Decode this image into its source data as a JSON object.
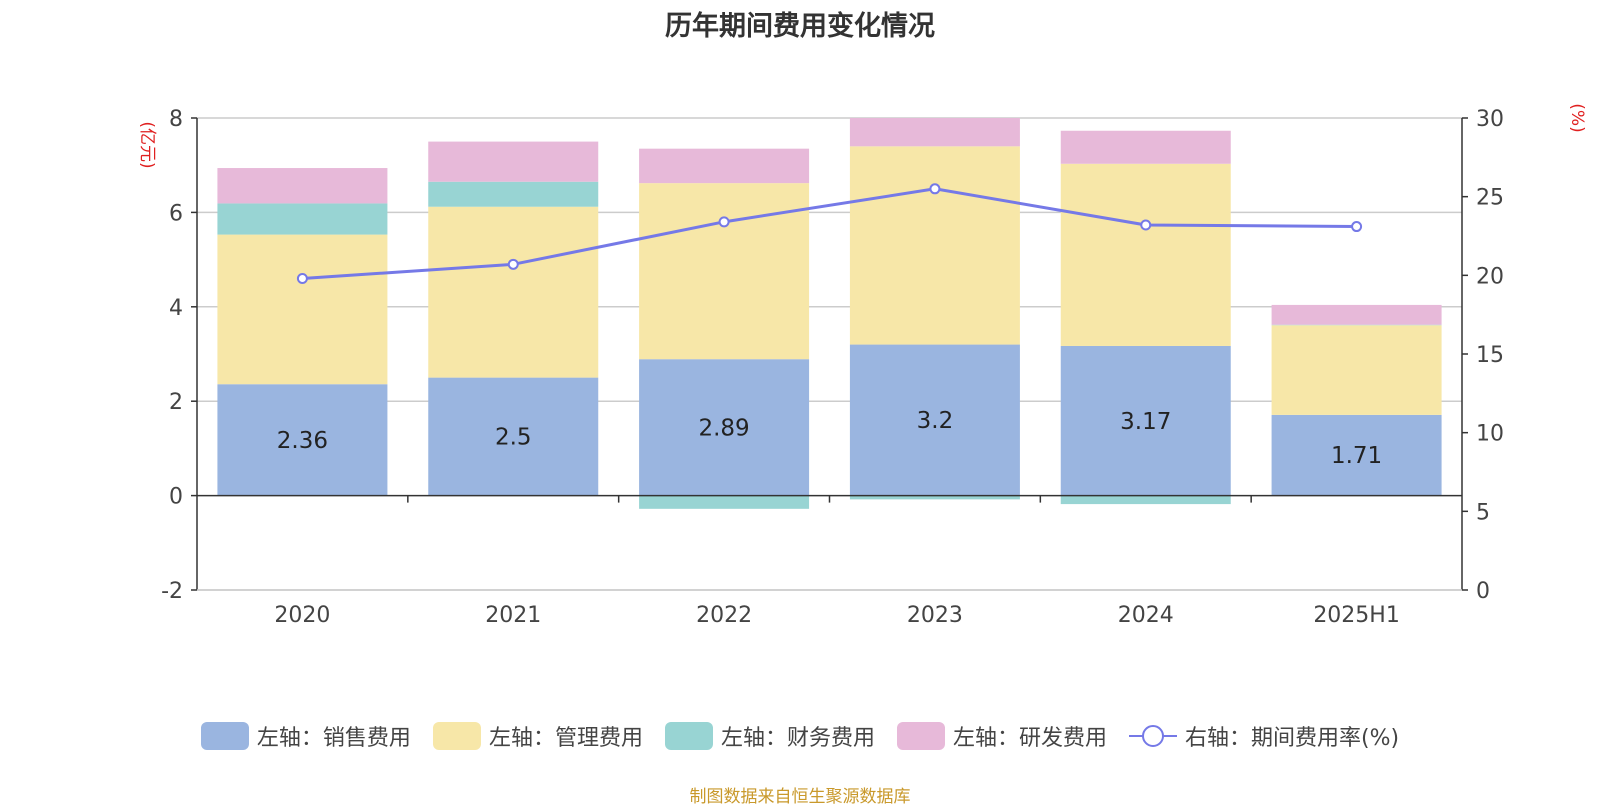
{
  "title": "历年期间费用变化情况",
  "source": "制图数据来自恒生聚源数据库",
  "chart_data": {
    "type": "bar",
    "categories": [
      "2020",
      "2021",
      "2022",
      "2023",
      "2024",
      "2025H1"
    ],
    "left_axis": {
      "unit_label": "(亿元)",
      "ylim": [
        -2,
        8
      ],
      "ticks": [
        -2,
        0,
        2,
        4,
        6,
        8
      ]
    },
    "right_axis": {
      "unit_label": "(%)",
      "ylim": [
        0,
        30
      ],
      "ticks": [
        0,
        5,
        10,
        15,
        20,
        25,
        30
      ]
    },
    "series": [
      {
        "name": "左轴：销售费用",
        "kind": "bar",
        "color": "#9ab5e0",
        "values": [
          2.36,
          2.5,
          2.89,
          3.2,
          3.17,
          1.71
        ],
        "labels": [
          "2.36",
          "2.5",
          "2.89",
          "3.2",
          "3.17",
          "1.71"
        ]
      },
      {
        "name": "左轴：管理费用",
        "kind": "bar",
        "color": "#f7e7a8",
        "values": [
          3.17,
          3.62,
          3.73,
          4.2,
          3.86,
          1.9
        ]
      },
      {
        "name": "左轴：财务费用",
        "kind": "bar",
        "color": "#98d4d3",
        "values": [
          0.66,
          0.53,
          -0.28,
          -0.08,
          -0.18,
          0.01
        ]
      },
      {
        "name": "左轴：研发费用",
        "kind": "bar",
        "color": "#e7b9d9",
        "values": [
          0.75,
          0.85,
          0.73,
          0.6,
          0.7,
          0.42
        ]
      },
      {
        "name": "右轴：期间费用率(%)",
        "kind": "line",
        "color": "#7579e7",
        "values": [
          19.8,
          20.7,
          23.4,
          25.5,
          23.2,
          23.1
        ]
      }
    ],
    "grid": true,
    "legend_position": "bottom"
  }
}
